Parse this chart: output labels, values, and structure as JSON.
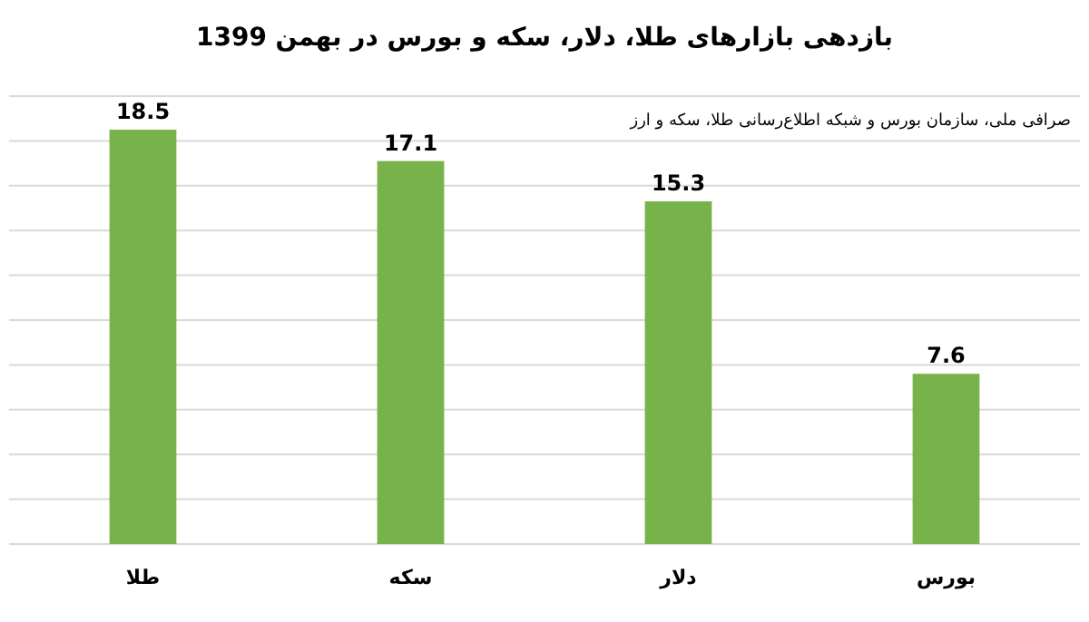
{
  "chart_data": {
    "type": "bar",
    "title": "بازدهی بازارهای طلا، دلار، سکه و بورس در بهمن 1399",
    "categories": [
      "طلا",
      "سکه",
      "دلار",
      "بورس"
    ],
    "values": [
      18.5,
      17.1,
      15.3,
      7.6
    ],
    "color": "#77b24a",
    "data_labels": true,
    "ylim": [
      0,
      20
    ],
    "yticks": [
      {
        "value": 0,
        "label": null
      },
      {
        "value": 2,
        "label": null
      },
      {
        "value": 4,
        "label": null
      },
      {
        "value": 6,
        "label": null
      },
      {
        "value": 8,
        "label": null
      },
      {
        "value": 10,
        "label": null
      },
      {
        "value": 12,
        "label": null
      },
      {
        "value": 14,
        "label": null
      },
      {
        "value": 16,
        "label": null
      },
      {
        "value": 18,
        "label": null
      },
      {
        "value": 20,
        "label": null
      }
    ],
    "tick_labels": "x",
    "grid": "y",
    "annotations": [
      "صرافی ملی، سازمان بورس و شبکه اطلاع‌رسانی طلا، سکه و ارز"
    ]
  }
}
